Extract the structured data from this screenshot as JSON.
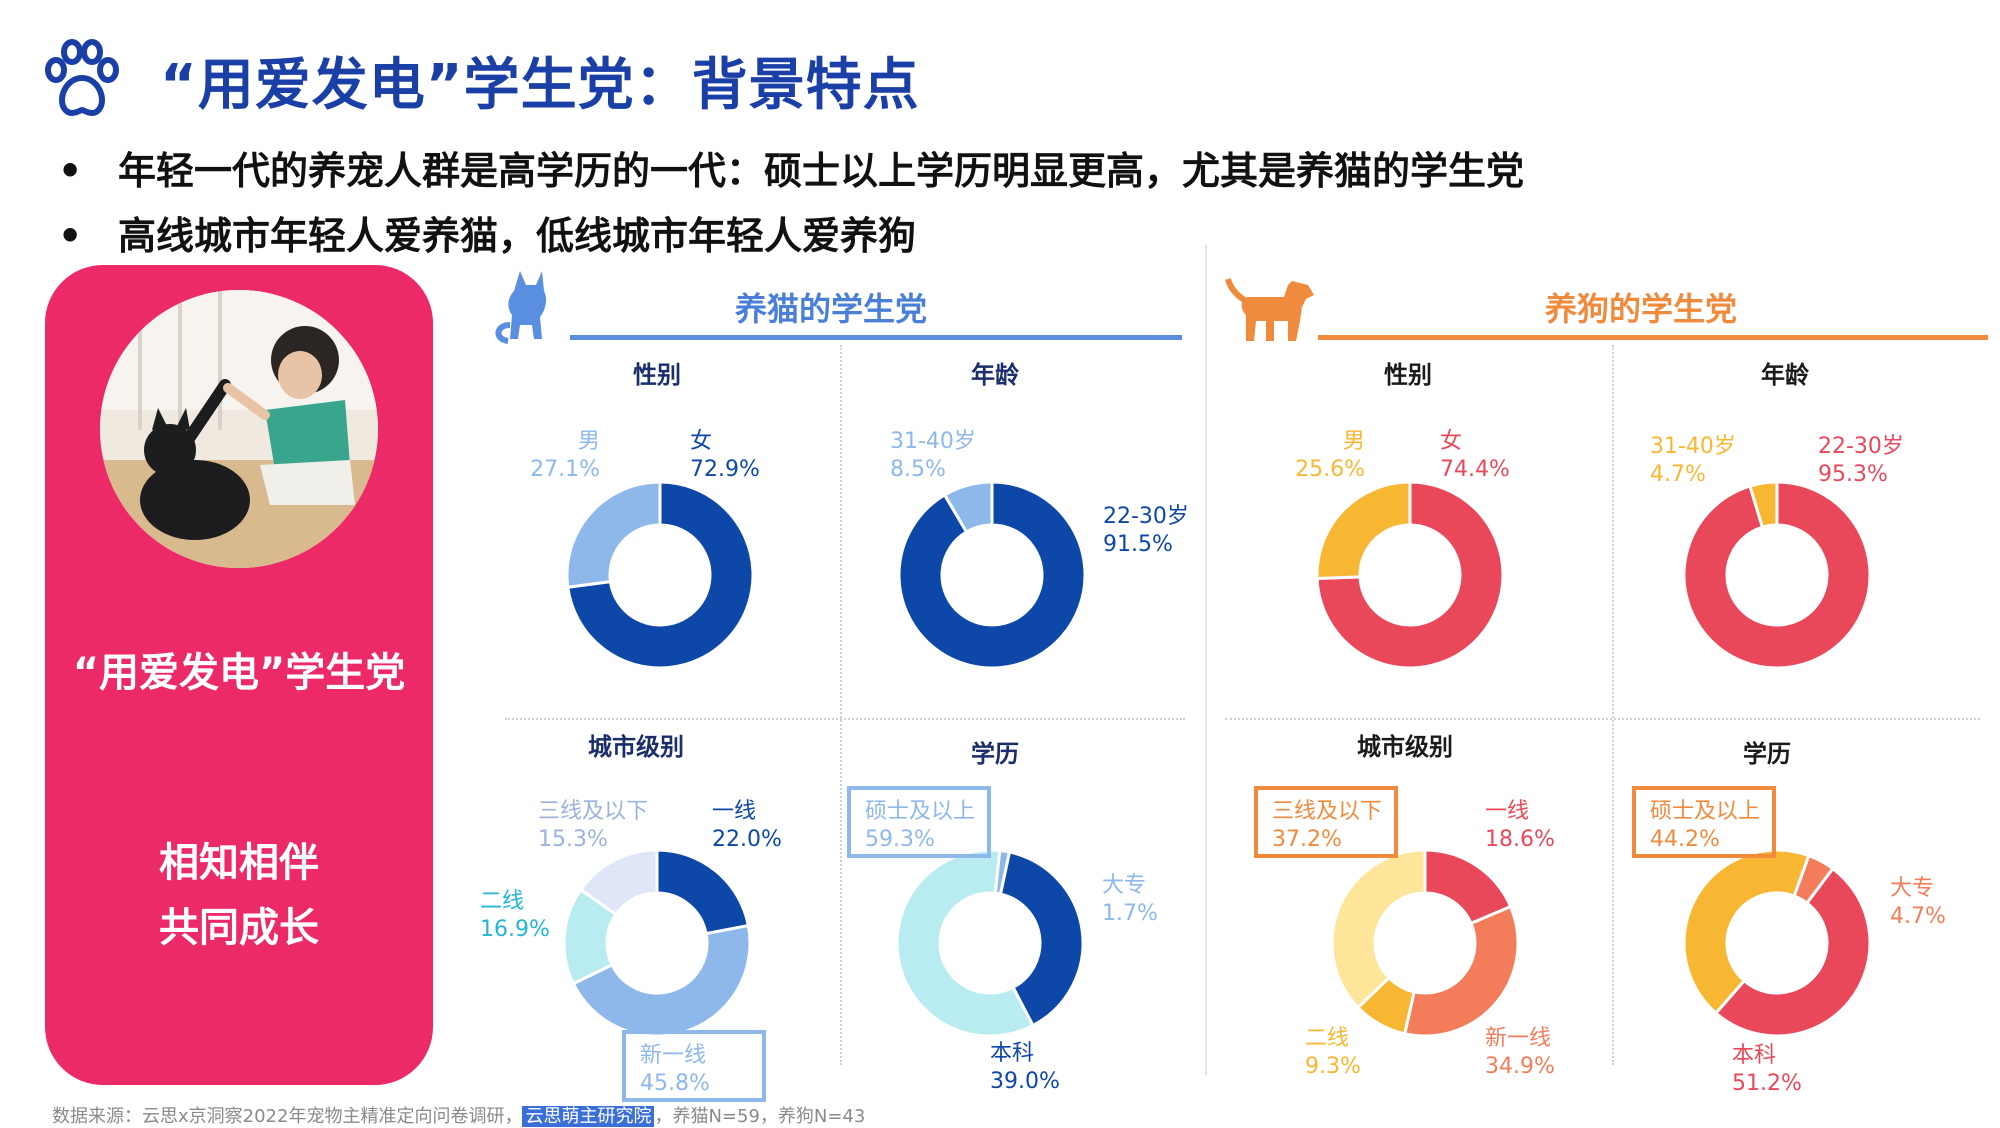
{
  "header": {
    "title": "“用爱发电”学生党：背景特点",
    "bullets": [
      "年轻一代的养宠人群是高学历的一代：硕士以上学历明显更高，尤其是养猫的学生党",
      "高线城市年轻人爱养猫，低线城市年轻人爱养狗"
    ],
    "bullet_marker": "•"
  },
  "left_card": {
    "title": "“用爱发电”学生党",
    "line1": "相知相伴",
    "line2": "共同成长"
  },
  "groups": {
    "cat": {
      "title": "养猫的学生党",
      "icon": "cat-icon"
    },
    "dog": {
      "title": "养狗的学生党",
      "icon": "dog-icon"
    }
  },
  "colors": {
    "brand_blue": "#1a3fa6",
    "card_pink": "#ec2a68",
    "cat_line": "#5a8ee0",
    "dog_line": "#f08a3c"
  },
  "chart_data": [
    {
      "id": "cat-gender",
      "type": "pie",
      "title": "性别",
      "slices": [
        {
          "label": "男",
          "value": 27.1,
          "text": "27.1%",
          "color": "#8fb8ea"
        },
        {
          "label": "女",
          "value": 72.9,
          "text": "72.9%",
          "color": "#0d47a8"
        }
      ]
    },
    {
      "id": "cat-age",
      "type": "pie",
      "title": "年龄",
      "slices": [
        {
          "label": "31-40岁",
          "value": 8.5,
          "text": "8.5%",
          "color": "#8fb8ea"
        },
        {
          "label": "22-30岁",
          "value": 91.5,
          "text": "91.5%",
          "color": "#0d47a8"
        }
      ]
    },
    {
      "id": "cat-city",
      "type": "pie",
      "title": "城市级别",
      "slices": [
        {
          "label": "一线",
          "value": 22.0,
          "text": "22.0%",
          "color": "#0d47a8"
        },
        {
          "label": "新一线",
          "value": 45.8,
          "text": "45.8%",
          "color": "#8fb8ea"
        },
        {
          "label": "二线",
          "value": 16.9,
          "text": "16.9%",
          "color": "#b8ecf0"
        },
        {
          "label": "三线及以下",
          "value": 15.3,
          "text": "15.3%",
          "color": "#dfe6f7"
        }
      ]
    },
    {
      "id": "cat-edu",
      "type": "pie",
      "title": "学历",
      "slices": [
        {
          "label": "大专",
          "value": 1.7,
          "text": "1.7%",
          "color": "#8fb8ea"
        },
        {
          "label": "本科",
          "value": 39.0,
          "text": "39.0%",
          "color": "#0d47a8"
        },
        {
          "label": "硕士及以上",
          "value": 59.3,
          "text": "59.3%",
          "color": "#b8ecf0"
        }
      ]
    },
    {
      "id": "dog-gender",
      "type": "pie",
      "title": "性别",
      "slices": [
        {
          "label": "男",
          "value": 25.6,
          "text": "25.6%",
          "color": "#f7b733"
        },
        {
          "label": "女",
          "value": 74.4,
          "text": "74.4%",
          "color": "#e9485a"
        }
      ]
    },
    {
      "id": "dog-age",
      "type": "pie",
      "title": "年龄",
      "slices": [
        {
          "label": "31-40岁",
          "value": 4.7,
          "text": "4.7%",
          "color": "#f7b733"
        },
        {
          "label": "22-30岁",
          "value": 95.3,
          "text": "95.3%",
          "color": "#e9485a"
        }
      ]
    },
    {
      "id": "dog-city",
      "type": "pie",
      "title": "城市级别",
      "slices": [
        {
          "label": "一线",
          "value": 18.6,
          "text": "18.6%",
          "color": "#e9485a"
        },
        {
          "label": "新一线",
          "value": 34.9,
          "text": "34.9%",
          "color": "#f37d5a"
        },
        {
          "label": "二线",
          "value": 9.3,
          "text": "9.3%",
          "color": "#f7b733"
        },
        {
          "label": "三线及以下",
          "value": 37.2,
          "text": "37.2%",
          "color": "#fde69a"
        }
      ]
    },
    {
      "id": "dog-edu",
      "type": "pie",
      "title": "学历",
      "slices": [
        {
          "label": "大专",
          "value": 4.7,
          "text": "4.7%",
          "color": "#f37d5a"
        },
        {
          "label": "本科",
          "value": 51.2,
          "text": "51.2%",
          "color": "#e9485a"
        },
        {
          "label": "硕士及以上",
          "value": 44.2,
          "text": "44.2%",
          "color": "#f7b733"
        }
      ]
    }
  ],
  "source": {
    "prefix": "数据来源：云思x京洞察2022年宠物主精准定向问卷调研，",
    "highlight": "云思萌主研究院",
    "suffix": "，养猫N=59，养狗N=43"
  }
}
